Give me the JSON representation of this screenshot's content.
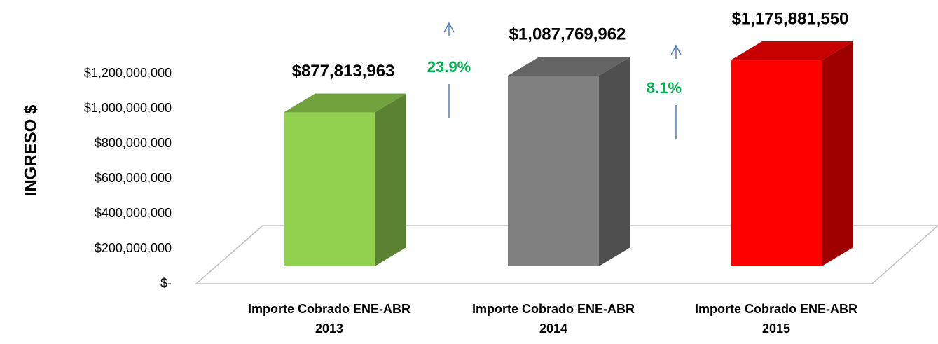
{
  "chart_data": {
    "type": "bar3d",
    "y_label": "INGRESO $",
    "categories": [
      "Importe Cobrado ENE-ABR 2013",
      "Importe Cobrado ENE-ABR 2014",
      "Importe Cobrado ENE-ABR 2015"
    ],
    "values": [
      877813963,
      1087769962,
      1175881550
    ],
    "value_labels": [
      "$877,813,963",
      "$1,087,769,962",
      "$1,175,881,550"
    ],
    "colors": [
      "#92d050",
      "#808080",
      "#ff0000"
    ],
    "ylim": [
      0,
      1200000000
    ],
    "yticks": [
      {
        "value": 0,
        "label": "$-"
      },
      {
        "value": 200000000,
        "label": "$200,000,000"
      },
      {
        "value": 400000000,
        "label": "$400,000,000"
      },
      {
        "value": 600000000,
        "label": "$600,000,000"
      },
      {
        "value": 800000000,
        "label": "$800,000,000"
      },
      {
        "value": 1000000000,
        "label": "$1,000,000,000"
      },
      {
        "value": 1200000000,
        "label": "$1,200,000,000"
      }
    ],
    "annotations": [
      "23.9%",
      "8.1%"
    ],
    "annotation_color": "#00b050"
  }
}
